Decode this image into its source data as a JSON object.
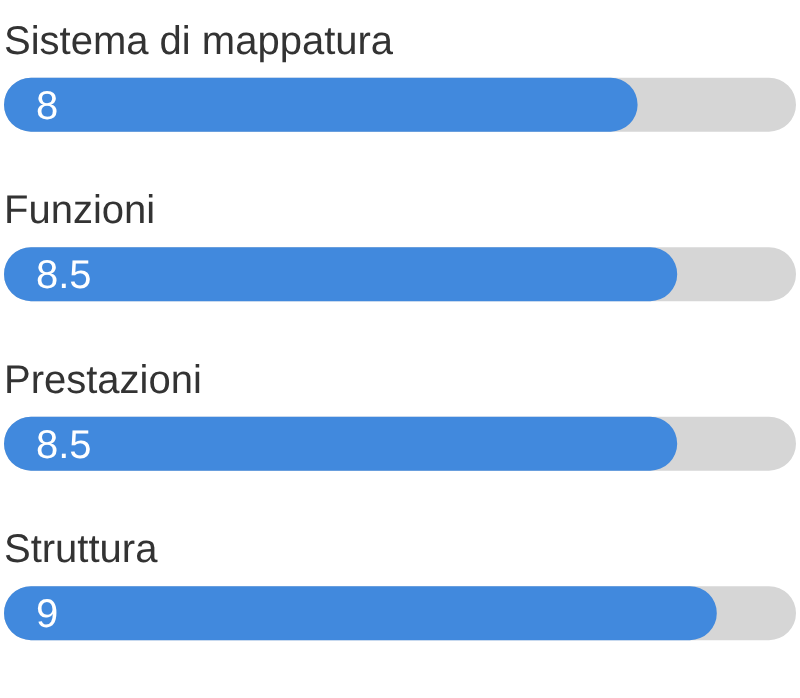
{
  "chart_data": {
    "type": "bar",
    "orientation": "horizontal",
    "categories": [
      "Sistema di mappatura",
      "Funzioni",
      "Prestazioni",
      "Struttura"
    ],
    "values": [
      8,
      8.5,
      8.5,
      9
    ],
    "color": "#4189dd",
    "xlim": [
      0,
      10
    ],
    "tick_labels": false,
    "data_labels": true
  }
}
